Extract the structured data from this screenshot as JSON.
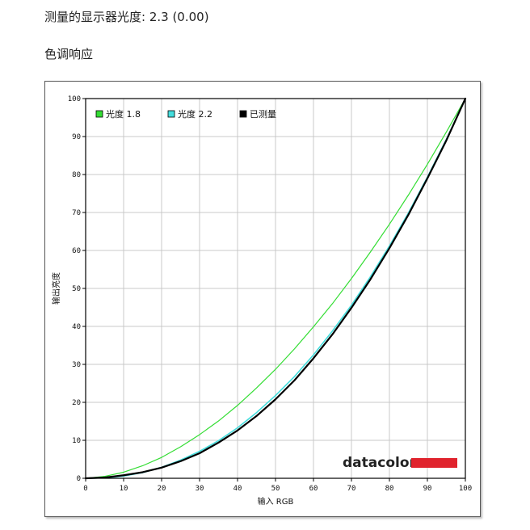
{
  "page": {
    "heading": "测量的显示器光度:  2.3 (0.00)",
    "section_title": "色调响应"
  },
  "brand": {
    "logo_text": "datacolor",
    "logo_color": "#e0232d"
  },
  "chart_data": {
    "type": "line",
    "title": "",
    "xlabel": "输入  RGB",
    "ylabel": "输出亮度",
    "xlim": [
      0,
      100
    ],
    "ylim": [
      0,
      100
    ],
    "xticks": [
      0,
      10,
      20,
      30,
      40,
      50,
      60,
      70,
      80,
      90,
      100
    ],
    "yticks": [
      0,
      10,
      20,
      30,
      40,
      50,
      60,
      70,
      80,
      90,
      100
    ],
    "grid": true,
    "legend_position": "top-left",
    "series": [
      {
        "name": "光度 1.8",
        "color": "#33dd33",
        "x": [
          0,
          5,
          10,
          15,
          20,
          25,
          30,
          35,
          40,
          45,
          50,
          55,
          60,
          65,
          70,
          75,
          80,
          85,
          90,
          95,
          100
        ],
        "y": [
          0,
          0.5,
          1.6,
          3.3,
          5.5,
          8.3,
          11.5,
          15.1,
          19.2,
          23.8,
          28.7,
          34.1,
          39.9,
          46.0,
          52.6,
          59.6,
          66.9,
          74.6,
          82.7,
          91.2,
          100
        ]
      },
      {
        "name": "光度 2.2",
        "color": "#44dddd",
        "x": [
          0,
          5,
          10,
          15,
          20,
          25,
          30,
          35,
          40,
          45,
          50,
          55,
          60,
          65,
          70,
          75,
          80,
          85,
          90,
          95,
          100
        ],
        "y": [
          0,
          0.1,
          0.6,
          1.5,
          2.9,
          4.8,
          7.1,
          9.9,
          13.3,
          17.3,
          21.8,
          26.8,
          32.5,
          38.8,
          45.6,
          53.1,
          61.2,
          69.9,
          79.3,
          89.3,
          100
        ]
      },
      {
        "name": "已测量",
        "color": "#000000",
        "x": [
          0,
          5,
          10,
          15,
          20,
          25,
          30,
          35,
          40,
          45,
          50,
          55,
          60,
          65,
          70,
          75,
          80,
          85,
          90,
          95,
          100
        ],
        "y": [
          0,
          0.2,
          0.8,
          1.6,
          2.8,
          4.5,
          6.6,
          9.4,
          12.6,
          16.4,
          20.8,
          25.8,
          31.6,
          37.9,
          44.9,
          52.4,
          60.6,
          69.4,
          79.0,
          89.0,
          100
        ]
      }
    ]
  }
}
